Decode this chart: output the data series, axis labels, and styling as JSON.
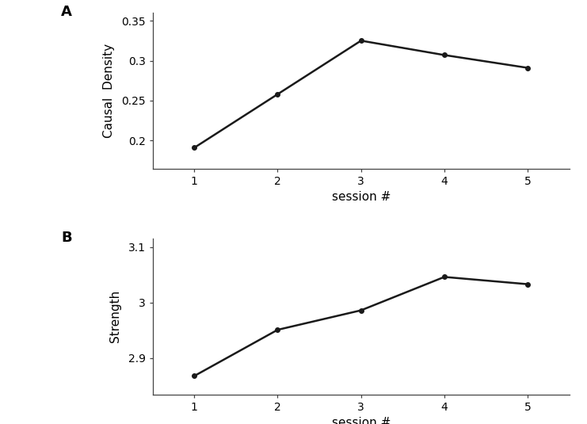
{
  "panel_A": {
    "label": "A",
    "x": [
      1,
      2,
      3,
      4,
      5
    ],
    "y": [
      0.191,
      0.258,
      0.325,
      0.307,
      0.291
    ],
    "ylabel": "Causal  Density",
    "xlabel": "session #",
    "ylim": [
      0.165,
      0.36
    ],
    "yticks": [
      0.2,
      0.25,
      0.3,
      0.35
    ],
    "ytick_labels": [
      "0.2",
      "0.25",
      "0.3",
      "0.35"
    ],
    "xticks": [
      1,
      2,
      3,
      4,
      5
    ]
  },
  "panel_B": {
    "label": "B",
    "x": [
      1,
      2,
      3,
      4,
      5
    ],
    "y": [
      2.868,
      2.951,
      2.986,
      3.046,
      3.033
    ],
    "ylabel": "Strength",
    "xlabel": "session #",
    "ylim": [
      2.835,
      3.115
    ],
    "yticks": [
      2.9,
      3.0,
      3.1
    ],
    "ytick_labels": [
      "2.9",
      "3",
      "3.1"
    ],
    "xticks": [
      1,
      2,
      3,
      4,
      5
    ]
  },
  "line_color": "#1a1a1a",
  "marker": "o",
  "marker_size": 4,
  "linewidth": 1.8,
  "background_color": "#ffffff",
  "label_fontsize": 11,
  "tick_fontsize": 10,
  "panel_label_fontsize": 13,
  "border_color": "#aaaaaa"
}
